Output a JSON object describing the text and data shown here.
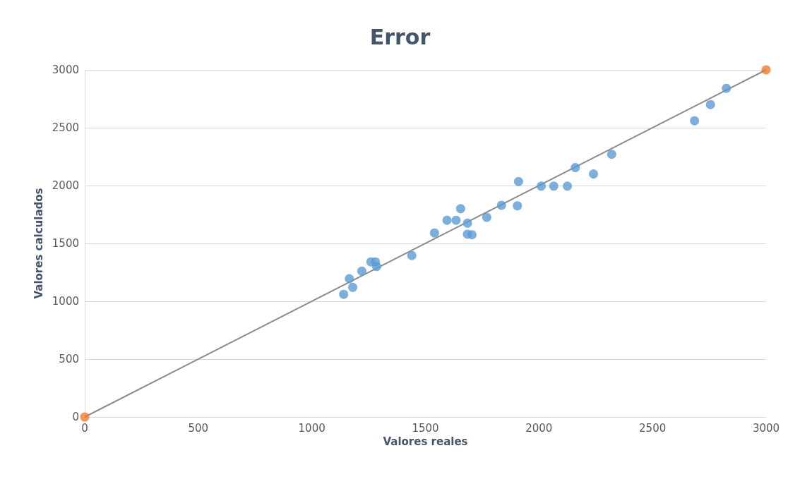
{
  "chart_data": {
    "type": "scatter",
    "title": "Error",
    "xlabel": "Valores reales",
    "ylabel": "Valores calculados",
    "xlim": [
      0,
      3000
    ],
    "xticks": [
      0,
      500,
      1000,
      1500,
      2000,
      2500,
      3000
    ],
    "ylim": [
      0,
      3000
    ],
    "yticks": [
      0,
      500,
      1000,
      1500,
      2000,
      2500,
      3000
    ],
    "grid": "y",
    "marker": "circle",
    "series": [
      {
        "type": "line",
        "color": "#8c8c8c",
        "x": [
          0,
          3000
        ],
        "values": [
          0,
          3000
        ],
        "marker": "none"
      },
      {
        "color": "#5b9bd5",
        "x": [
          1140,
          1165,
          1180,
          1220,
          1260,
          1280,
          1285,
          1440,
          1540,
          1595,
          1635,
          1655,
          1685,
          1685,
          1705,
          1770,
          1835,
          1905,
          1910,
          2010,
          2065,
          2125,
          2160,
          2240,
          2320,
          2685,
          2755,
          2825
        ],
        "values": [
          1060,
          1195,
          1120,
          1260,
          1340,
          1340,
          1300,
          1395,
          1590,
          1700,
          1700,
          1800,
          1675,
          1580,
          1575,
          1725,
          1830,
          1825,
          2035,
          1995,
          1995,
          1995,
          2155,
          2100,
          2270,
          2560,
          2700,
          2840
        ]
      },
      {
        "color": "#ed7d31",
        "x": [
          0,
          3000
        ],
        "values": [
          0,
          3000
        ]
      }
    ]
  }
}
